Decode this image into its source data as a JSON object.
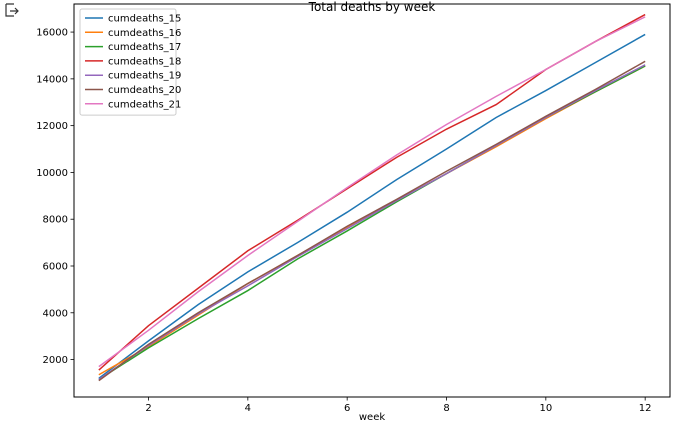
{
  "chart_data": {
    "type": "line",
    "title": "Total deaths by week",
    "xlabel": "week",
    "ylabel": "",
    "xlim": [
      0.5,
      12.5
    ],
    "ylim": [
      400,
      17200
    ],
    "xticks": [
      2,
      4,
      6,
      8,
      10,
      12
    ],
    "yticks": [
      2000,
      4000,
      6000,
      8000,
      10000,
      12000,
      14000,
      16000
    ],
    "grid": false,
    "legend_position": "top-left",
    "x": [
      1,
      2,
      3,
      4,
      5,
      6,
      7,
      8,
      9,
      10,
      11,
      12
    ],
    "series": [
      {
        "name": "cumdeaths_15",
        "color": "#1f77b4",
        "values": [
          1200,
          2800,
          4350,
          5750,
          7000,
          8300,
          9700,
          11000,
          12350,
          13500,
          14700,
          15900
        ]
      },
      {
        "name": "cumdeaths_16",
        "color": "#ff7f0e",
        "values": [
          1350,
          2550,
          3900,
          5250,
          6450,
          7650,
          8800,
          9950,
          11100,
          12300,
          13450,
          14550
        ]
      },
      {
        "name": "cumdeaths_17",
        "color": "#2ca02c",
        "values": [
          1150,
          2500,
          3750,
          4950,
          6300,
          7500,
          8750,
          9950,
          11150,
          12350,
          13450,
          14550
        ]
      },
      {
        "name": "cumdeaths_18",
        "color": "#d62728",
        "values": [
          1550,
          3450,
          5050,
          6650,
          7950,
          9300,
          10650,
          11850,
          12900,
          14400,
          15600,
          16750
        ]
      },
      {
        "name": "cumdeaths_19",
        "color": "#9467bd",
        "values": [
          1150,
          2600,
          3950,
          5150,
          6400,
          7600,
          8800,
          9950,
          11150,
          12350,
          13500,
          14600
        ]
      },
      {
        "name": "cumdeaths_20",
        "color": "#8c564b",
        "values": [
          1100,
          2650,
          4000,
          5250,
          6450,
          7700,
          8850,
          10050,
          11200,
          12400,
          13550,
          14750
        ]
      },
      {
        "name": "cumdeaths_21",
        "color": "#e377c2",
        "values": [
          1700,
          3250,
          4900,
          6450,
          7900,
          9350,
          10750,
          12050,
          13250,
          14400,
          15600,
          16650
        ]
      }
    ]
  }
}
